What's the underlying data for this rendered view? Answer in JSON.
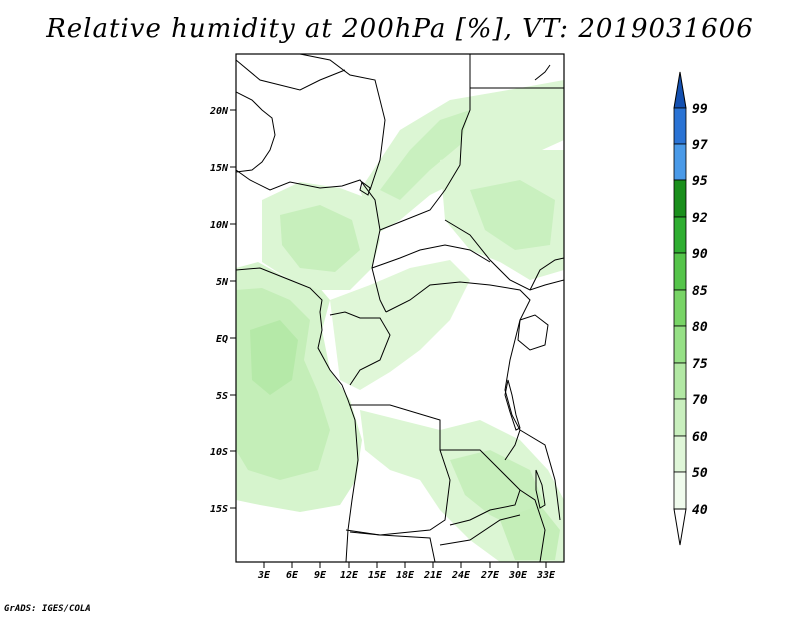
{
  "title": "Relative humidity at 200hPa [%], VT: 2019031606",
  "footer": "GrADS: IGES/COLA",
  "map": {
    "lat_labels": [
      "20N",
      "15N",
      "10N",
      "5N",
      "EQ",
      "5S",
      "10S",
      "15S"
    ],
    "lon_labels": [
      "3E",
      "6E",
      "9E",
      "12E",
      "15E",
      "18E",
      "21E",
      "24E",
      "27E",
      "30E",
      "33E"
    ],
    "land_color": "#ffffff",
    "shading_colors": {
      "40": "#eefbe9",
      "50": "#d8f5d0",
      "60": "#bfedb5"
    }
  },
  "colorbar": {
    "levels": [
      "40",
      "50",
      "60",
      "70",
      "75",
      "80",
      "85",
      "90",
      "92",
      "95",
      "97",
      "99"
    ],
    "colors": [
      "#ffffff",
      "#f0fbed",
      "#dff6d8",
      "#c9efbe",
      "#b2e8a4",
      "#96e086",
      "#78d466",
      "#55c44a",
      "#2fae31",
      "#1a8f1c",
      "#4a9ae8",
      "#2a73d4",
      "#1450b0"
    ]
  }
}
